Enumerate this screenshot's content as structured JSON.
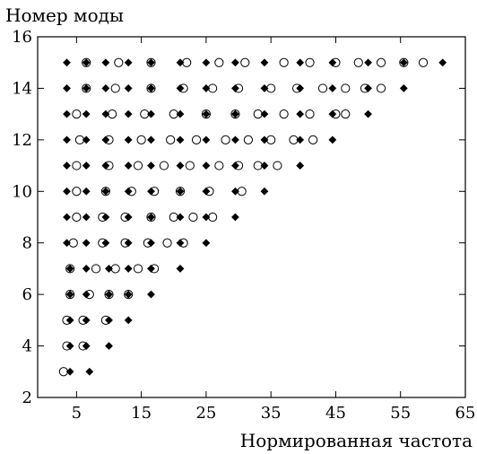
{
  "chart_data": {
    "type": "scatter",
    "title": "",
    "xlabel": "Нормированная частота",
    "ylabel": "Номер моды",
    "xlim": [
      -1,
      65
    ],
    "ylim": [
      2,
      16
    ],
    "xticks": [
      5,
      15,
      25,
      35,
      45,
      55,
      65
    ],
    "yticks": [
      2,
      4,
      6,
      8,
      10,
      12,
      14,
      16
    ],
    "grid": false,
    "legend": "none",
    "marker_colors": {
      "diamond": "#000000",
      "circle_edge": "#000000",
      "circle_fill": "#ffffff"
    },
    "series": [
      {
        "marker": "filled-diamond",
        "points": [
          [
            4,
            3
          ],
          [
            7,
            3
          ],
          [
            4,
            4
          ],
          [
            6.5,
            4
          ],
          [
            10,
            4
          ],
          [
            4,
            5
          ],
          [
            6.5,
            5
          ],
          [
            10,
            5
          ],
          [
            13,
            5
          ],
          [
            4,
            6
          ],
          [
            6.5,
            6
          ],
          [
            10,
            6
          ],
          [
            13,
            6
          ],
          [
            16.5,
            6
          ],
          [
            4,
            7
          ],
          [
            6.5,
            7
          ],
          [
            10,
            7
          ],
          [
            13,
            7
          ],
          [
            16.5,
            7
          ],
          [
            21,
            7
          ],
          [
            3.5,
            8
          ],
          [
            6.5,
            8
          ],
          [
            9.5,
            8
          ],
          [
            13,
            8
          ],
          [
            16.5,
            8
          ],
          [
            21,
            8
          ],
          [
            25,
            8
          ],
          [
            3.5,
            9
          ],
          [
            6.5,
            9
          ],
          [
            9.5,
            9
          ],
          [
            13,
            9
          ],
          [
            16.5,
            9
          ],
          [
            21,
            9
          ],
          [
            25,
            9
          ],
          [
            29.5,
            9
          ],
          [
            3.5,
            10
          ],
          [
            6.5,
            10
          ],
          [
            9.5,
            10
          ],
          [
            13,
            10
          ],
          [
            16.5,
            10
          ],
          [
            21,
            10
          ],
          [
            25,
            10
          ],
          [
            29.5,
            10
          ],
          [
            34,
            10
          ],
          [
            3.5,
            11
          ],
          [
            6.5,
            11
          ],
          [
            9.5,
            11
          ],
          [
            13,
            11
          ],
          [
            16.5,
            11
          ],
          [
            21,
            11
          ],
          [
            25,
            11
          ],
          [
            29.5,
            11
          ],
          [
            34,
            11
          ],
          [
            39.5,
            11
          ],
          [
            3.5,
            12
          ],
          [
            6.5,
            12
          ],
          [
            9.5,
            12
          ],
          [
            13,
            12
          ],
          [
            16.5,
            12
          ],
          [
            21,
            12
          ],
          [
            25,
            12
          ],
          [
            29.5,
            12
          ],
          [
            34,
            12
          ],
          [
            39.5,
            12
          ],
          [
            44.5,
            12
          ],
          [
            3.5,
            13
          ],
          [
            6.5,
            13
          ],
          [
            9.5,
            13
          ],
          [
            13,
            13
          ],
          [
            16.5,
            13
          ],
          [
            21,
            13
          ],
          [
            25,
            13
          ],
          [
            29.5,
            13
          ],
          [
            34,
            13
          ],
          [
            39.5,
            13
          ],
          [
            44.5,
            13
          ],
          [
            50,
            13
          ],
          [
            3.5,
            14
          ],
          [
            6.5,
            14
          ],
          [
            9.5,
            14
          ],
          [
            13,
            14
          ],
          [
            16.5,
            14
          ],
          [
            21,
            14
          ],
          [
            25,
            14
          ],
          [
            29.5,
            14
          ],
          [
            34,
            14
          ],
          [
            39.5,
            14
          ],
          [
            44.5,
            14
          ],
          [
            50,
            14
          ],
          [
            55.5,
            14
          ],
          [
            3.5,
            15
          ],
          [
            6.5,
            15
          ],
          [
            9.5,
            15
          ],
          [
            13,
            15
          ],
          [
            16.5,
            15
          ],
          [
            21,
            15
          ],
          [
            25,
            15
          ],
          [
            29.5,
            15
          ],
          [
            34,
            15
          ],
          [
            39.5,
            15
          ],
          [
            44.5,
            15
          ],
          [
            50,
            15
          ],
          [
            55.5,
            15
          ],
          [
            61.5,
            15
          ]
        ]
      },
      {
        "marker": "open-circle",
        "points": [
          [
            3,
            3
          ],
          [
            3.5,
            4
          ],
          [
            6,
            4
          ],
          [
            3.5,
            5
          ],
          [
            6,
            5
          ],
          [
            9.5,
            5
          ],
          [
            4,
            6
          ],
          [
            7,
            6
          ],
          [
            10,
            6
          ],
          [
            13,
            6
          ],
          [
            4,
            7
          ],
          [
            8,
            7
          ],
          [
            11,
            7
          ],
          [
            14.5,
            7
          ],
          [
            17,
            7
          ],
          [
            4.5,
            8
          ],
          [
            9,
            8
          ],
          [
            12.5,
            8
          ],
          [
            16,
            8
          ],
          [
            19,
            8
          ],
          [
            21.5,
            8
          ],
          [
            5,
            9
          ],
          [
            9,
            9
          ],
          [
            12.5,
            9
          ],
          [
            16.5,
            9
          ],
          [
            20,
            9
          ],
          [
            23,
            9
          ],
          [
            26,
            9
          ],
          [
            5,
            10
          ],
          [
            9.5,
            10
          ],
          [
            13.5,
            10
          ],
          [
            17,
            10
          ],
          [
            21,
            10
          ],
          [
            25.5,
            10
          ],
          [
            30.5,
            10
          ],
          [
            5,
            11
          ],
          [
            10,
            11
          ],
          [
            14.5,
            11
          ],
          [
            18.5,
            11
          ],
          [
            22.5,
            11
          ],
          [
            27,
            11
          ],
          [
            30,
            11
          ],
          [
            33,
            11
          ],
          [
            36,
            11
          ],
          [
            5.5,
            12
          ],
          [
            10,
            12
          ],
          [
            15,
            12
          ],
          [
            19.5,
            12
          ],
          [
            23.5,
            12
          ],
          [
            28,
            12
          ],
          [
            31.5,
            12
          ],
          [
            35,
            12
          ],
          [
            38.5,
            12
          ],
          [
            41.5,
            12
          ],
          [
            5,
            13
          ],
          [
            10.5,
            13
          ],
          [
            15.5,
            13
          ],
          [
            20,
            13
          ],
          [
            25,
            13
          ],
          [
            29.5,
            13
          ],
          [
            33,
            13
          ],
          [
            37,
            13
          ],
          [
            41,
            13
          ],
          [
            45,
            13
          ],
          [
            46.5,
            13
          ],
          [
            6.5,
            14
          ],
          [
            11,
            14
          ],
          [
            16.5,
            14
          ],
          [
            21.5,
            14
          ],
          [
            26,
            14
          ],
          [
            30,
            14
          ],
          [
            35,
            14
          ],
          [
            39,
            14
          ],
          [
            43,
            14
          ],
          [
            46.5,
            14
          ],
          [
            49.5,
            14
          ],
          [
            52,
            14
          ],
          [
            6.5,
            15
          ],
          [
            11.5,
            15
          ],
          [
            16.5,
            15
          ],
          [
            22,
            15
          ],
          [
            27,
            15
          ],
          [
            31,
            15
          ],
          [
            37,
            15
          ],
          [
            41,
            15
          ],
          [
            45,
            15
          ],
          [
            48.5,
            15
          ],
          [
            52,
            15
          ],
          [
            55.5,
            15
          ],
          [
            58.5,
            15
          ]
        ]
      }
    ]
  }
}
